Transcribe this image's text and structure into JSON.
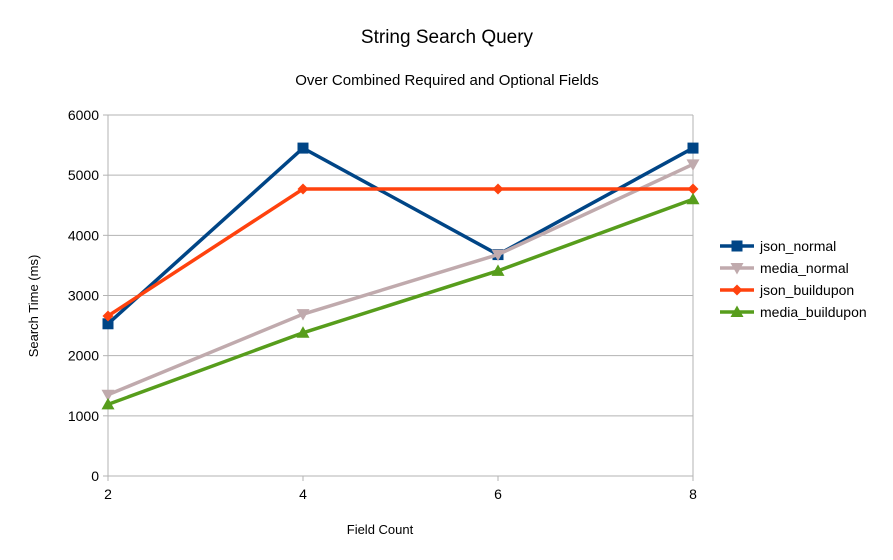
{
  "chart_data": {
    "type": "line",
    "title": "String Search Query",
    "subtitle": "Over Combined Required and Optional Fields",
    "xlabel": "Field Count",
    "ylabel": "Search Time (ms)",
    "x": [
      2,
      4,
      6,
      8
    ],
    "xlim": [
      2,
      8
    ],
    "ylim": [
      0,
      6000
    ],
    "yticks": [
      0,
      1000,
      2000,
      3000,
      4000,
      5000,
      6000
    ],
    "xticks": [
      2,
      4,
      6,
      8
    ],
    "grid": "horizontal",
    "legend_position": "right",
    "series": [
      {
        "name": "json_normal",
        "color": "#004586",
        "marker": "square",
        "values": [
          2530,
          5450,
          3680,
          5450
        ]
      },
      {
        "name": "media_normal",
        "color": "#c0aaad",
        "marker": "triangle-down",
        "values": [
          1350,
          2690,
          3680,
          5180
        ]
      },
      {
        "name": "json_buildupon",
        "color": "#ff420e",
        "marker": "diamond",
        "values": [
          2660,
          4770,
          4770,
          4770
        ]
      },
      {
        "name": "media_buildupon",
        "color": "#579d1c",
        "marker": "triangle-up",
        "values": [
          1190,
          2380,
          3410,
          4600
        ]
      }
    ]
  }
}
